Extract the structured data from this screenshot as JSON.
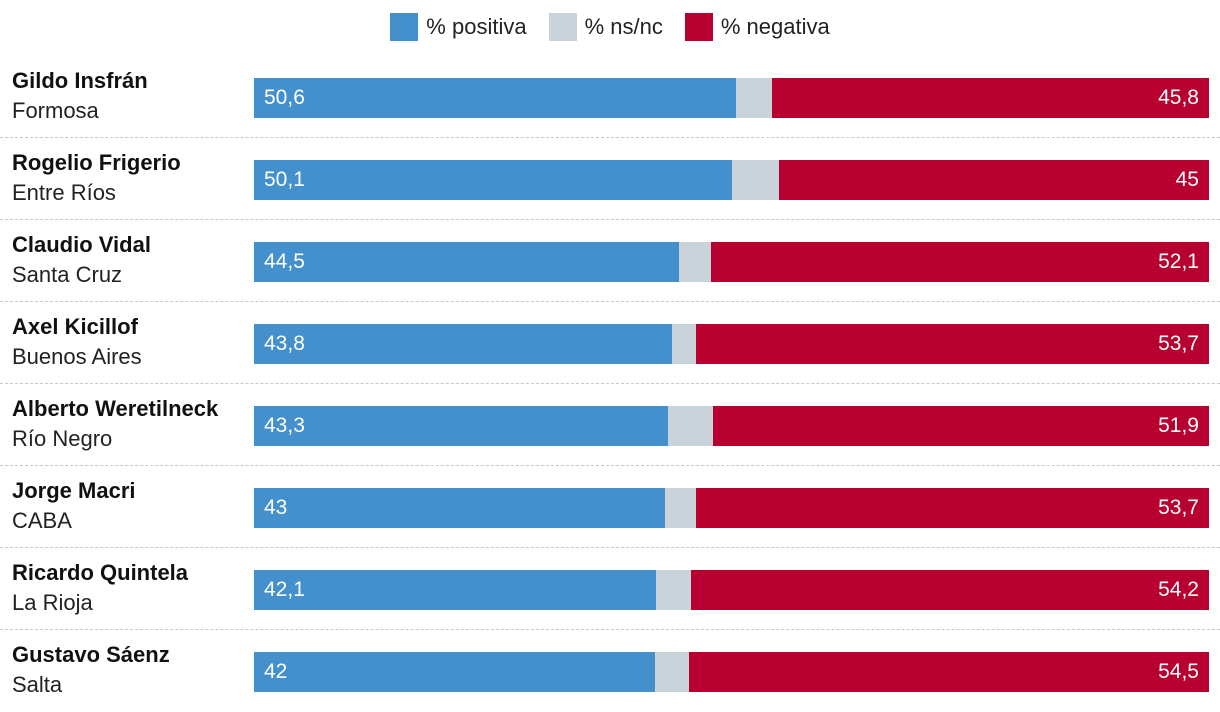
{
  "legend": [
    {
      "key": "positiva",
      "label": "% positiva",
      "color": "#4490cd"
    },
    {
      "key": "nsnc",
      "label": "% ns/nc",
      "color": "#c9d3da"
    },
    {
      "key": "negativa",
      "label": "% negativa",
      "color": "#b70030"
    }
  ],
  "chart_data": {
    "type": "bar",
    "orientation": "horizontal",
    "stacked": true,
    "categories": [
      {
        "name": "Gildo Insfrán",
        "region": "Formosa"
      },
      {
        "name": "Rogelio Frigerio",
        "region": "Entre Ríos"
      },
      {
        "name": "Claudio Vidal",
        "region": "Santa Cruz"
      },
      {
        "name": "Axel Kicillof",
        "region": "Buenos Aires"
      },
      {
        "name": "Alberto Weretilneck",
        "region": "Río Negro"
      },
      {
        "name": "Jorge Macri",
        "region": "CABA"
      },
      {
        "name": "Ricardo Quintela",
        "region": "La Rioja"
      },
      {
        "name": "Gustavo Sáenz",
        "region": "Salta"
      }
    ],
    "series": [
      {
        "name": "% positiva",
        "labels": [
          "50,6",
          "50,1",
          "44,5",
          "43,8",
          "43,3",
          "43",
          "42,1",
          "42"
        ],
        "values": [
          50.6,
          50.1,
          44.5,
          43.8,
          43.3,
          43,
          42.1,
          42
        ]
      },
      {
        "name": "% ns/nc",
        "values": [
          3.8,
          4.9,
          3.4,
          2.5,
          4.8,
          3.3,
          3.7,
          3.5
        ]
      },
      {
        "name": "% negativa",
        "labels": [
          "45,8",
          "45",
          "52,1",
          "53,7",
          "51,9",
          "53,7",
          "54,2",
          "54,5"
        ],
        "values": [
          45.8,
          45,
          52.1,
          53.7,
          51.9,
          53.7,
          54.2,
          54.5
        ]
      }
    ],
    "xlim": [
      0,
      100
    ],
    "legend_position": "top-center"
  }
}
